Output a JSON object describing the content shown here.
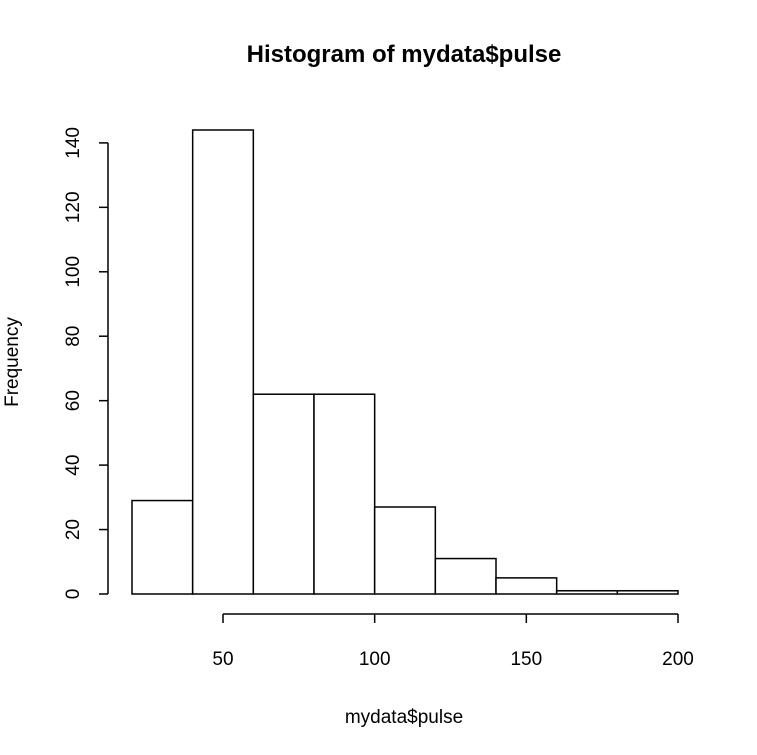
{
  "chart_data": {
    "type": "histogram",
    "title": "Histogram of mydata$pulse",
    "xlabel": "mydata$pulse",
    "ylabel": "Frequency",
    "bins": [
      {
        "x0": 20,
        "x1": 40,
        "count": 29
      },
      {
        "x0": 40,
        "x1": 60,
        "count": 144
      },
      {
        "x0": 60,
        "x1": 80,
        "count": 62
      },
      {
        "x0": 80,
        "x1": 100,
        "count": 62
      },
      {
        "x0": 100,
        "x1": 120,
        "count": 27
      },
      {
        "x0": 120,
        "x1": 140,
        "count": 11
      },
      {
        "x0": 140,
        "x1": 160,
        "count": 5
      },
      {
        "x0": 160,
        "x1": 180,
        "count": 1
      },
      {
        "x0": 180,
        "x1": 200,
        "count": 1
      }
    ],
    "xlim": [
      20,
      200
    ],
    "ylim": [
      0,
      144
    ],
    "x_ticks": [
      50,
      100,
      150,
      200
    ],
    "y_ticks": [
      0,
      20,
      40,
      60,
      80,
      100,
      120,
      140
    ],
    "x_tick_labels": [
      "50",
      "100",
      "150",
      "200"
    ],
    "y_tick_labels": [
      "0",
      "20",
      "40",
      "60",
      "80",
      "100",
      "120",
      "140"
    ],
    "grid": false,
    "legend": "none",
    "bar_fill": "#ffffff",
    "bar_stroke": "#000000"
  }
}
